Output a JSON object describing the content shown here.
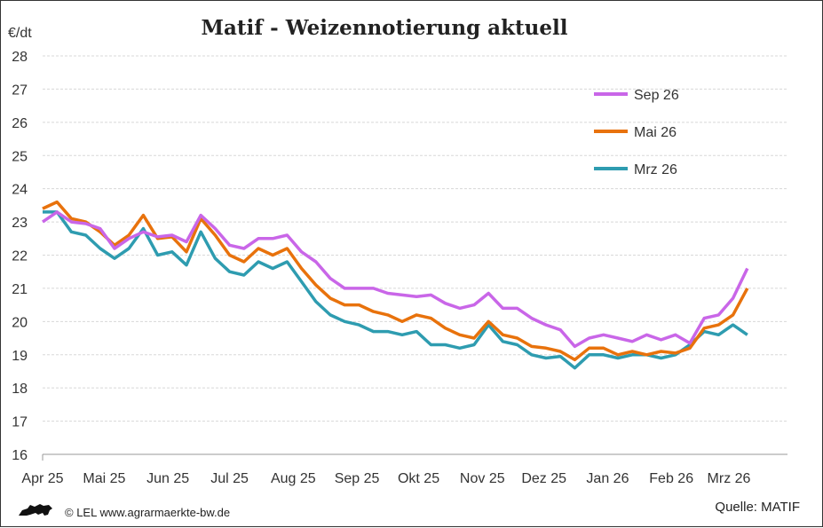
{
  "chart_data": {
    "type": "line",
    "title": "Matif - Weizennotierung aktuell",
    "ylabel": "€/dt",
    "xlabel": "",
    "ylim": [
      16,
      28
    ],
    "yticks": [
      "16",
      "17",
      "18",
      "19",
      "20",
      "21",
      "22",
      "23",
      "24",
      "25",
      "26",
      "27",
      "28"
    ],
    "xlim": [
      "2025-04-01",
      "2026-04-01"
    ],
    "xticks": [
      {
        "date": "2025-04-01",
        "label": "Apr 25"
      },
      {
        "date": "2025-05-01",
        "label": "Mai 25"
      },
      {
        "date": "2025-06-01",
        "label": "Jun 25"
      },
      {
        "date": "2025-07-01",
        "label": "Jul 25"
      },
      {
        "date": "2025-08-01",
        "label": "Aug 25"
      },
      {
        "date": "2025-09-01",
        "label": "Sep 25"
      },
      {
        "date": "2025-10-01",
        "label": "Okt 25"
      },
      {
        "date": "2025-11-01",
        "label": "Nov 25"
      },
      {
        "date": "2025-12-01",
        "label": "Dez 25"
      },
      {
        "date": "2026-01-01",
        "label": "Jan 26"
      },
      {
        "date": "2026-02-01",
        "label": "Feb 26"
      },
      {
        "date": "2026-03-01",
        "label": "Mrz 26"
      }
    ],
    "grid": true,
    "legend_position": "top-right",
    "x": [
      "2025-04-01",
      "2025-04-08",
      "2025-04-15",
      "2025-04-22",
      "2025-04-29",
      "2025-05-06",
      "2025-05-13",
      "2025-05-20",
      "2025-05-27",
      "2025-06-03",
      "2025-06-10",
      "2025-06-17",
      "2025-06-24",
      "2025-07-01",
      "2025-07-08",
      "2025-07-15",
      "2025-07-22",
      "2025-07-29",
      "2025-08-05",
      "2025-08-12",
      "2025-08-19",
      "2025-08-26",
      "2025-09-02",
      "2025-09-09",
      "2025-09-16",
      "2025-09-23",
      "2025-09-30",
      "2025-10-07",
      "2025-10-14",
      "2025-10-21",
      "2025-10-28",
      "2025-11-04",
      "2025-11-11",
      "2025-11-18",
      "2025-11-25",
      "2025-12-02",
      "2025-12-09",
      "2025-12-16",
      "2025-12-23",
      "2025-12-30",
      "2026-01-06",
      "2026-01-13",
      "2026-01-20",
      "2026-01-27",
      "2026-02-03",
      "2026-02-10",
      "2026-02-17",
      "2026-02-24",
      "2026-03-03",
      "2026-03-10"
    ],
    "series": [
      {
        "name": "Sep 26",
        "color": "#c966e8",
        "values": [
          23.0,
          23.3,
          23.0,
          22.95,
          22.8,
          22.2,
          22.5,
          22.7,
          22.55,
          22.6,
          22.4,
          23.2,
          22.8,
          22.3,
          22.2,
          22.5,
          22.5,
          22.6,
          22.1,
          21.8,
          21.3,
          21.0,
          21.0,
          21.0,
          20.85,
          20.8,
          20.75,
          20.8,
          20.55,
          20.4,
          20.5,
          20.85,
          20.4,
          20.4,
          20.1,
          19.9,
          19.75,
          19.25,
          19.5,
          19.6,
          19.5,
          19.4,
          19.6,
          19.45,
          19.6,
          19.35,
          20.1,
          20.2,
          20.7,
          21.6
        ]
      },
      {
        "name": "Mai 26",
        "color": "#e8720c",
        "values": [
          23.4,
          23.6,
          23.1,
          23.0,
          22.7,
          22.3,
          22.6,
          23.2,
          22.5,
          22.55,
          22.1,
          23.1,
          22.6,
          22.0,
          21.8,
          22.2,
          22.0,
          22.2,
          21.6,
          21.1,
          20.7,
          20.5,
          20.5,
          20.3,
          20.2,
          20.0,
          20.2,
          20.1,
          19.8,
          19.6,
          19.5,
          20.0,
          19.6,
          19.5,
          19.25,
          19.2,
          19.1,
          18.85,
          19.2,
          19.2,
          19.0,
          19.1,
          19.0,
          19.1,
          19.05,
          19.2,
          19.8,
          19.9,
          20.2,
          21.0
        ]
      },
      {
        "name": "Mrz 26",
        "color": "#2e9cb0",
        "values": [
          23.3,
          23.3,
          22.7,
          22.6,
          22.2,
          21.9,
          22.2,
          22.8,
          22.0,
          22.1,
          21.7,
          22.7,
          21.9,
          21.5,
          21.4,
          21.8,
          21.6,
          21.8,
          21.2,
          20.6,
          20.2,
          20.0,
          19.9,
          19.7,
          19.7,
          19.6,
          19.7,
          19.3,
          19.3,
          19.2,
          19.3,
          19.9,
          19.4,
          19.3,
          19.0,
          18.9,
          18.95,
          18.6,
          19.0,
          19.0,
          18.9,
          19.0,
          19.0,
          18.9,
          19.0,
          19.3,
          19.7,
          19.6,
          19.9,
          19.6
        ]
      }
    ]
  },
  "footer": {
    "copyright": "© LEL www.agrarmaerkte-bw.de",
    "source": "Quelle: MATIF",
    "logo": "lion-logo"
  }
}
